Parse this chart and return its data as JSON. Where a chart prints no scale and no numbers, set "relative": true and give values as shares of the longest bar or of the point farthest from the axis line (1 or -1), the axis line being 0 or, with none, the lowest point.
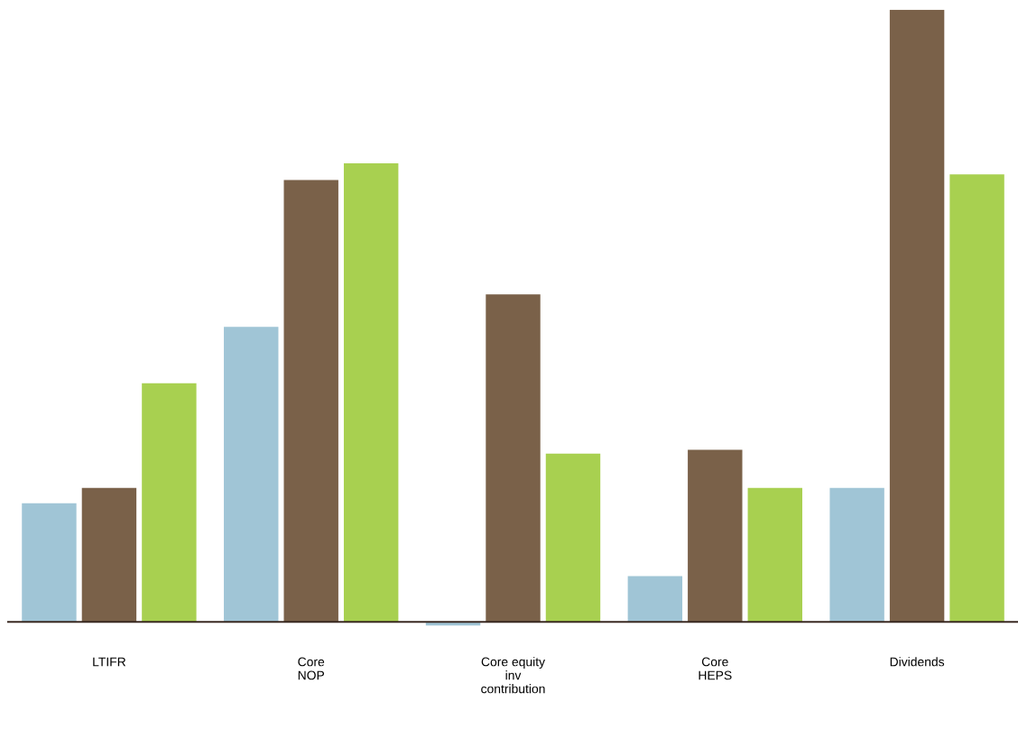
{
  "chart_data": {
    "type": "bar",
    "relative": true,
    "categories": [
      "LTIFR",
      "Core\nNOP",
      "Core equity\ninv\ncontribution",
      "Core\nHEPS",
      "Dividends"
    ],
    "series": [
      {
        "color": "#a0c5d6",
        "values": [
          0.194,
          0.482,
          -0.006,
          0.075,
          0.219
        ]
      },
      {
        "color": "#7a6149",
        "values": [
          0.219,
          0.722,
          0.535,
          0.281,
          1.0
        ]
      },
      {
        "color": "#a8d050",
        "values": [
          0.39,
          0.749,
          0.275,
          0.219,
          0.731
        ]
      }
    ],
    "grid": false,
    "legend": false
  }
}
